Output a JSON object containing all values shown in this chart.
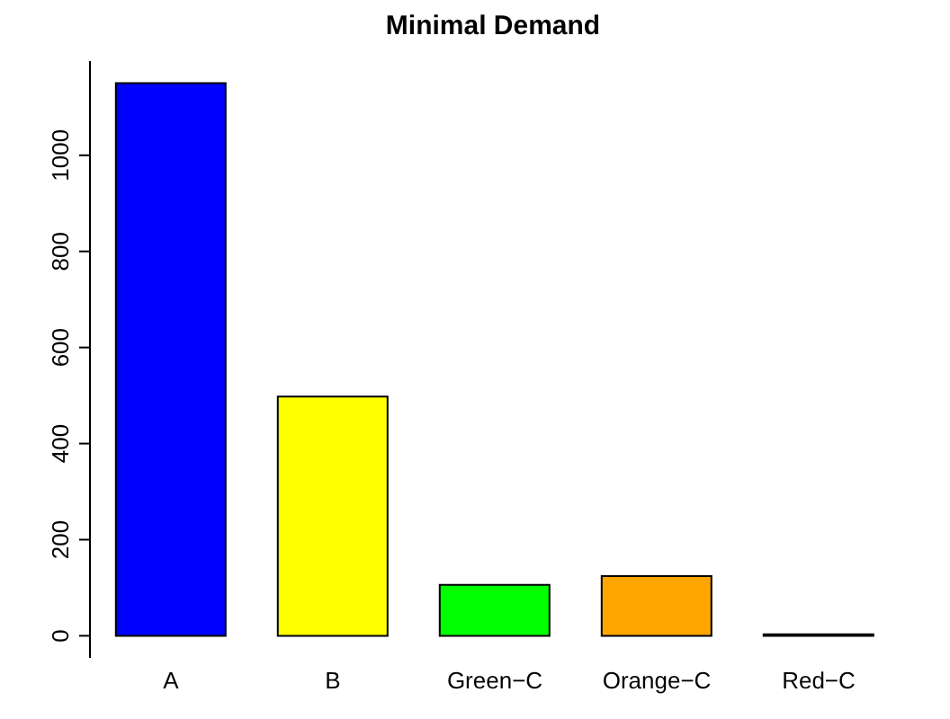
{
  "chart_data": {
    "type": "bar",
    "title": "Minimal Demand",
    "categories": [
      "A",
      "B",
      "Green−C",
      "Orange−C",
      "Red−C"
    ],
    "values": [
      1150,
      498,
      106,
      124,
      3
    ],
    "colors": [
      "#0000ff",
      "#ffff00",
      "#00ff00",
      "#ffa500",
      "#ff0000"
    ],
    "ylim": [
      -46,
      1196
    ],
    "yticks": [
      0,
      200,
      400,
      600,
      800,
      1000
    ],
    "grid": false
  }
}
